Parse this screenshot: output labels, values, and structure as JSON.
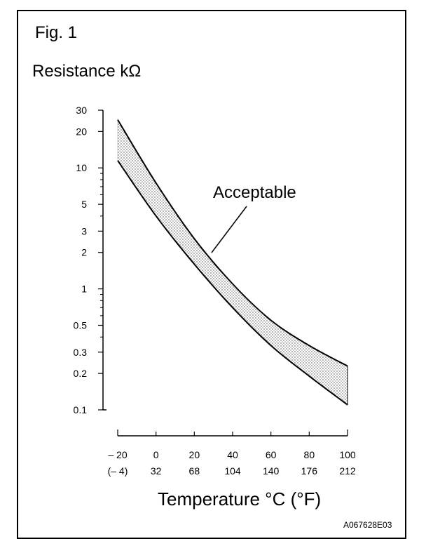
{
  "fig_label": "Fig. 1",
  "code": "A067628E03",
  "chart_data": {
    "type": "area",
    "ylabel": "Resistance kΩ",
    "xlabel": "Temperature °C (°F)",
    "annotation": "Acceptable",
    "y_scale": "log",
    "ylim": [
      0.1,
      30
    ],
    "xlim": [
      -20,
      100
    ],
    "y_ticks": [
      "30",
      "20",
      "10",
      "5",
      "3",
      "2",
      "1",
      "0.5",
      "0.3",
      "0.2",
      "0.1"
    ],
    "x_ticks_c": [
      "– 20",
      "0",
      "20",
      "40",
      "60",
      "80",
      "100"
    ],
    "x_ticks_f": [
      "(– 4)",
      "32",
      "68",
      "104",
      "140",
      "176",
      "212"
    ],
    "x": [
      -20,
      0,
      20,
      40,
      60,
      80,
      100
    ],
    "series": [
      {
        "values": [
          25,
          7.5,
          2.6,
          1.1,
          0.55,
          0.34,
          0.23
        ]
      },
      {
        "values": [
          11.5,
          4.0,
          1.6,
          0.7,
          0.34,
          0.19,
          0.11
        ]
      }
    ]
  }
}
